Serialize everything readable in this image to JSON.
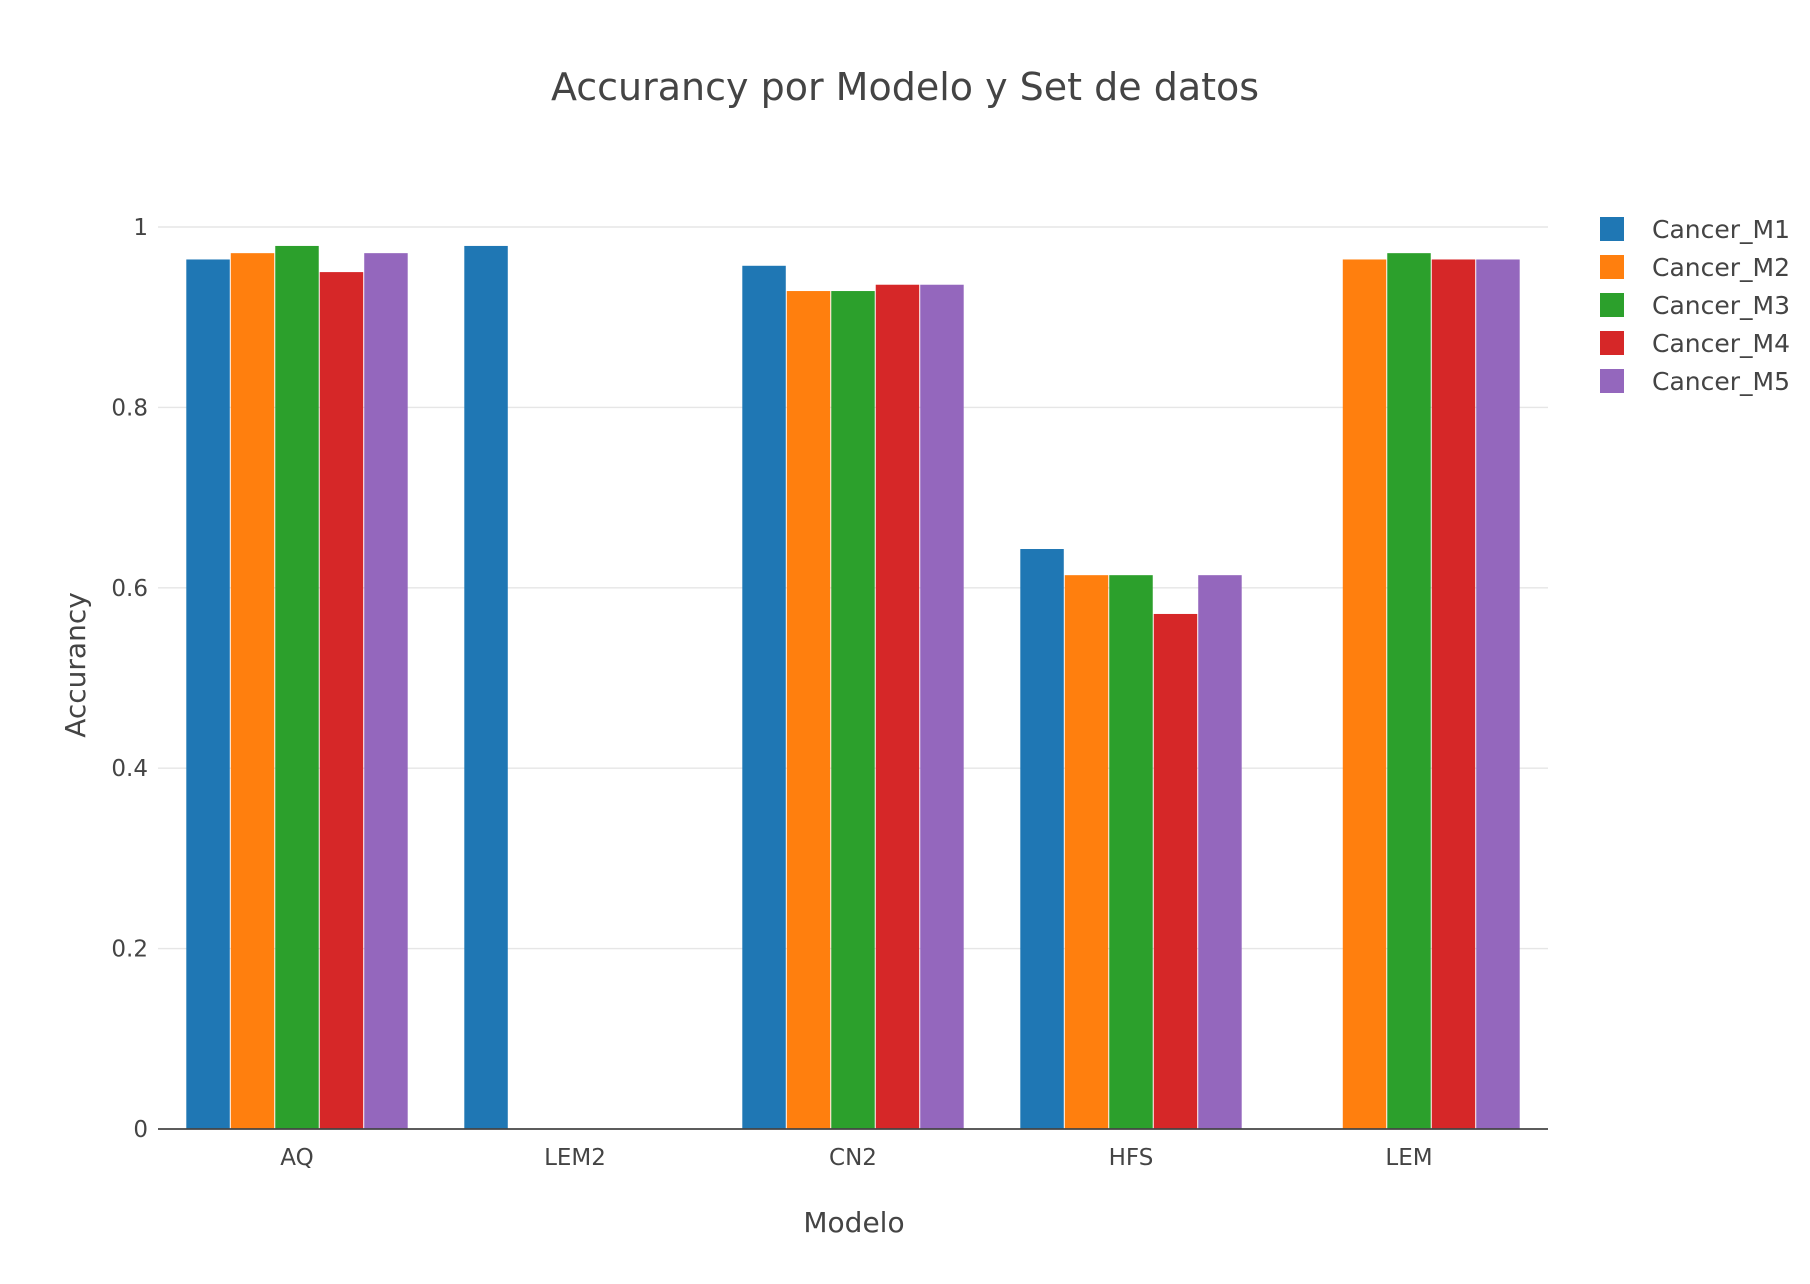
{
  "chart_data": {
    "type": "bar",
    "title": "Accurancy por Modelo y Set de datos",
    "xlabel": "Modelo",
    "ylabel": "Accurancy",
    "categories": [
      "AQ",
      "LEM2",
      "CN2",
      "HFS",
      "LEM"
    ],
    "ylim": [
      0,
      1
    ],
    "yticks": [
      0,
      0.2,
      0.4,
      0.6,
      0.8,
      1
    ],
    "ytick_labels": [
      "0",
      "0.2",
      "0.4",
      "0.6",
      "0.8",
      "1"
    ],
    "grid": true,
    "legend_position": "top-right",
    "series": [
      {
        "name": "Cancer_M1",
        "color": "#1f77b4",
        "values": [
          0.964,
          0.979,
          0.957,
          0.643,
          null
        ]
      },
      {
        "name": "Cancer_M2",
        "color": "#ff7f0e",
        "values": [
          0.971,
          null,
          0.929,
          0.614,
          0.964
        ]
      },
      {
        "name": "Cancer_M3",
        "color": "#2ca02c",
        "values": [
          0.979,
          null,
          0.929,
          0.614,
          0.971
        ]
      },
      {
        "name": "Cancer_M4",
        "color": "#d62728",
        "values": [
          0.95,
          null,
          0.936,
          0.571,
          0.964
        ]
      },
      {
        "name": "Cancer_M5",
        "color": "#9467bd",
        "values": [
          0.971,
          null,
          0.936,
          0.614,
          0.964
        ]
      }
    ]
  }
}
